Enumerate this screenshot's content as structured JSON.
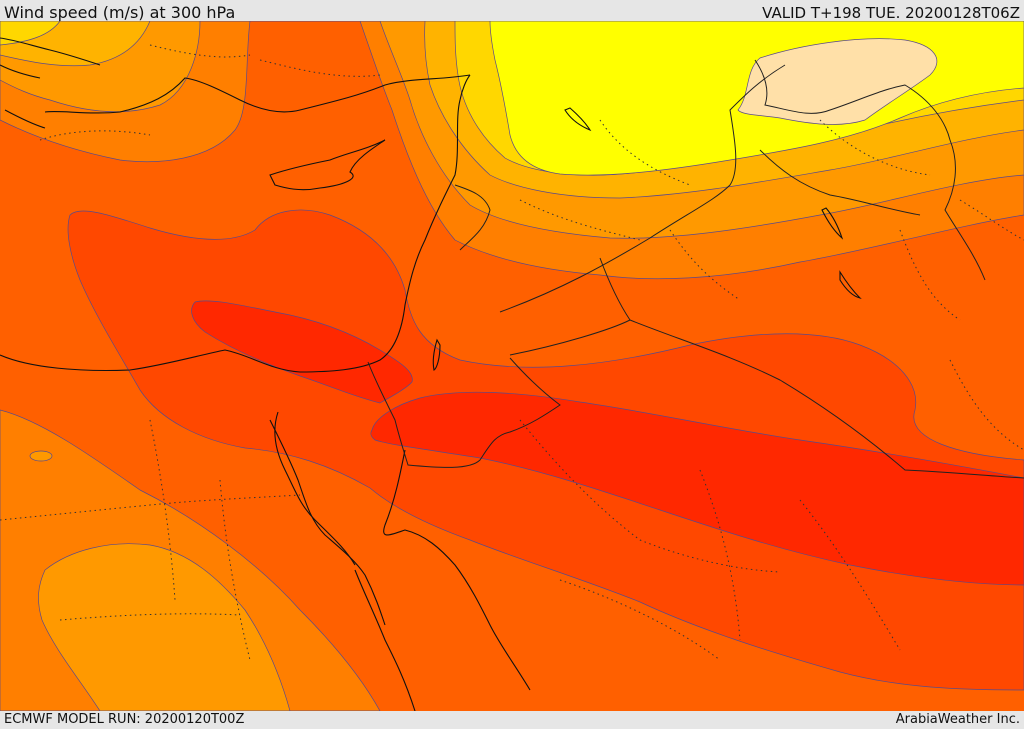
{
  "header": {
    "title": "Wind speed (m/s) at 300 hPa",
    "valid_time": "VALID T+198 TUE. 20200128T06Z"
  },
  "footer": {
    "model_run": "ECMWF MODEL RUN: 20200120T00Z",
    "credit": "ArabiaWeather Inc."
  },
  "colors": {
    "level_1": "#ffe0a8",
    "level_2": "#ffff00",
    "level_3": "#ffd700",
    "level_4": "#ffb300",
    "level_5": "#ff9900",
    "level_6": "#ff7f00",
    "level_7": "#ff6000",
    "level_8": "#ff4800",
    "level_9": "#ff2800"
  }
}
